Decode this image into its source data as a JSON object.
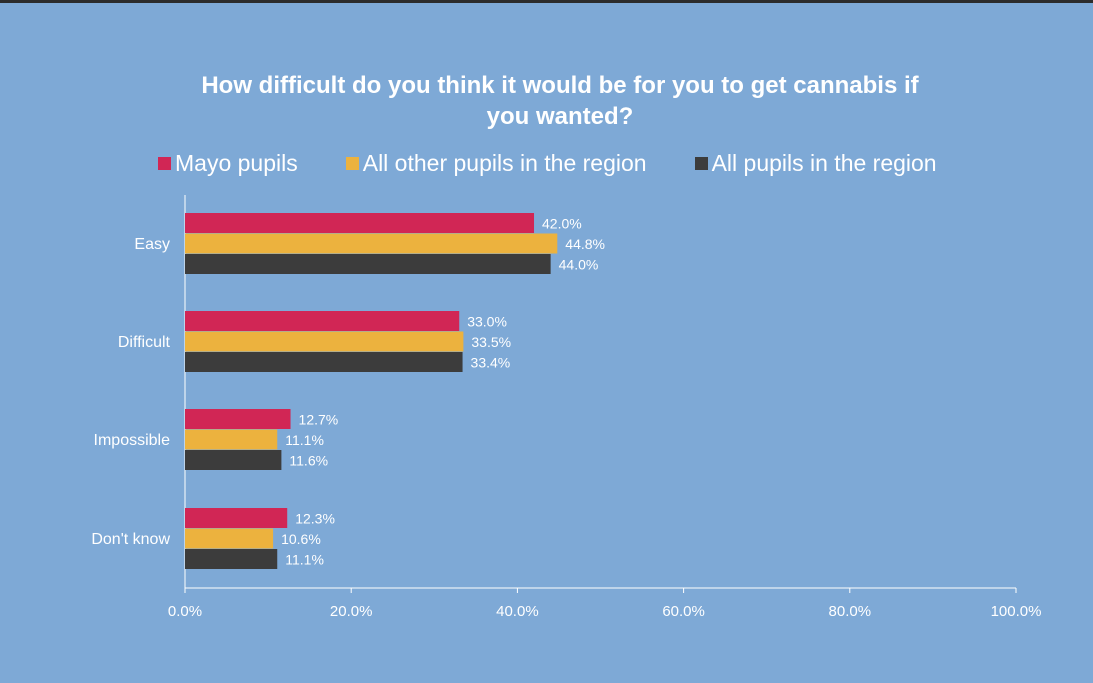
{
  "chart_data": {
    "type": "bar",
    "orientation": "horizontal",
    "title": "How difficult do you think it would be for you to get cannabis if you wanted?",
    "title_lines": [
      "How difficult do you think it would be for you to get cannabis if",
      "you wanted?"
    ],
    "categories": [
      "Easy",
      "Difficult",
      "Impossible",
      "Don't know"
    ],
    "series": [
      {
        "name": "Mayo pupils",
        "color": "#d12655",
        "values": [
          42.0,
          33.0,
          12.7,
          12.3
        ]
      },
      {
        "name": "All other pupils in the region",
        "color": "#ecb23e",
        "values": [
          44.8,
          33.5,
          11.1,
          10.6
        ]
      },
      {
        "name": "All pupils in the region",
        "color": "#3c3c3c",
        "values": [
          44.0,
          33.4,
          11.6,
          11.1
        ]
      }
    ],
    "value_labels": [
      [
        "42.0%",
        "33.0%",
        "12.7%",
        "12.3%"
      ],
      [
        "44.8%",
        "33.5%",
        "11.1%",
        "10.6%"
      ],
      [
        "44.0%",
        "33.4%",
        "11.6%",
        "11.1%"
      ]
    ],
    "xlim": [
      0,
      100
    ],
    "x_ticks": [
      0,
      20,
      40,
      60,
      80,
      100
    ],
    "x_tick_labels": [
      "0.0%",
      "20.0%",
      "40.0%",
      "60.0%",
      "80.0%",
      "100.0%"
    ],
    "xlabel": "",
    "ylabel": "",
    "grid": false,
    "legend_position": "top"
  }
}
